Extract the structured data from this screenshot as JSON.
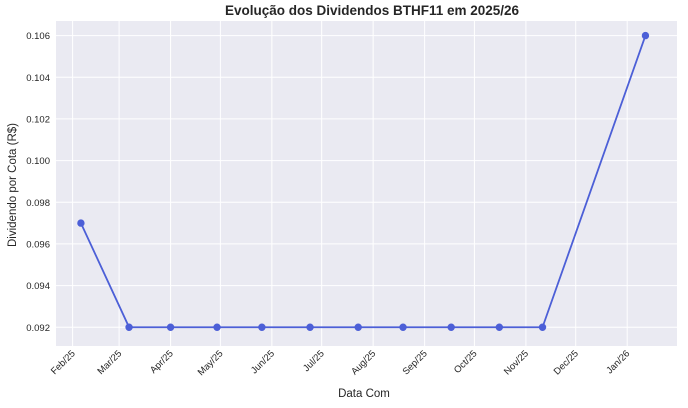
{
  "chart_data": {
    "type": "line",
    "title": "Evolução dos Dividendos BTHF11 em 2025/26",
    "xlabel": "Data Com",
    "ylabel": "Dividendo por Cota (R$)",
    "x_tick_labels": [
      "Feb/25",
      "Mar/25",
      "Apr/25",
      "May/25",
      "Jun/25",
      "Jul/25",
      "Aug/25",
      "Sep/25",
      "Oct/25",
      "Nov/25",
      "Dec/25",
      "Jan/26"
    ],
    "x_tick_dates": [
      "2025-02-01",
      "2025-03-01",
      "2025-04-01",
      "2025-05-01",
      "2025-06-01",
      "2025-07-01",
      "2025-08-01",
      "2025-09-01",
      "2025-10-01",
      "2025-11-01",
      "2025-12-01",
      "2026-01-01"
    ],
    "xlim": [
      "2025-01-22",
      "2026-01-31"
    ],
    "ylim": [
      0.0911,
      0.1067
    ],
    "y_ticks": [
      0.092,
      0.094,
      0.096,
      0.098,
      0.1,
      0.102,
      0.104,
      0.106
    ],
    "y_tick_labels": [
      "0.092",
      "0.094",
      "0.096",
      "0.098",
      "0.100",
      "0.102",
      "0.104",
      "0.106"
    ],
    "grid": true,
    "series": [
      {
        "color": "#4c5fd7",
        "points": [
          {
            "x": "2025-02-06",
            "y": 0.097
          },
          {
            "x": "2025-03-07",
            "y": 0.092
          },
          {
            "x": "2025-04-01",
            "y": 0.092
          },
          {
            "x": "2025-04-29",
            "y": 0.092
          },
          {
            "x": "2025-05-26",
            "y": 0.092
          },
          {
            "x": "2025-06-24",
            "y": 0.092
          },
          {
            "x": "2025-07-23",
            "y": 0.092
          },
          {
            "x": "2025-08-19",
            "y": 0.092
          },
          {
            "x": "2025-09-17",
            "y": 0.092
          },
          {
            "x": "2025-10-16",
            "y": 0.092
          },
          {
            "x": "2025-11-11",
            "y": 0.092
          },
          {
            "x": "2026-01-12",
            "y": 0.106
          }
        ]
      }
    ]
  },
  "style": {
    "plot_background": "#eaeaf2",
    "grid_color": "#ffffff",
    "line_color": "#4c5fd7",
    "text_color": "#262626"
  }
}
